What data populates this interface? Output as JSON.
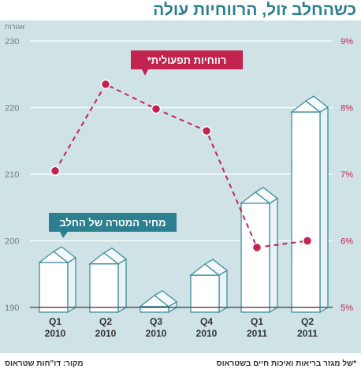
{
  "title": "כשהחלב זול, הרווחיות עולה",
  "footnote": "*של מגזר בריאות ואיכות חיים בשטראוס",
  "source": "מקור: דו\"חות שטראוס",
  "colors": {
    "panel": "#cfe3e7",
    "accent": "#2c7f8e",
    "profit": "#c2234f",
    "box_face": "#ffffff",
    "box_edge": "#3f8fa0"
  },
  "chart_data": {
    "type": "bar",
    "categories": [
      {
        "quarter": "Q1",
        "year": "2010"
      },
      {
        "quarter": "Q2",
        "year": "2010"
      },
      {
        "quarter": "Q3",
        "year": "2010"
      },
      {
        "quarter": "Q4",
        "year": "2010"
      },
      {
        "quarter": "Q1",
        "year": "2011"
      },
      {
        "quarter": "Q2",
        "year": "2011"
      }
    ],
    "left_axis": {
      "unit_label": "אגורות",
      "ylim": [
        190,
        230
      ],
      "ticks": [
        "190",
        "200",
        "210",
        "220",
        "230"
      ]
    },
    "right_axis": {
      "ylim": [
        5,
        9
      ],
      "ticks": [
        "5%",
        "6%",
        "7%",
        "8%",
        "9%"
      ]
    },
    "series": [
      {
        "name": "מחיר המטרה של החלב",
        "render": "3d-boxes",
        "axis": "left",
        "values": [
          198.4,
          198.2,
          191.8,
          196.5,
          207.3,
          221.0
        ]
      },
      {
        "name": "רווחיות תפעולית*",
        "render": "dashed-line",
        "axis": "right",
        "values": [
          7.05,
          8.35,
          7.98,
          7.65,
          5.9,
          6.0
        ]
      }
    ],
    "grid": true
  }
}
